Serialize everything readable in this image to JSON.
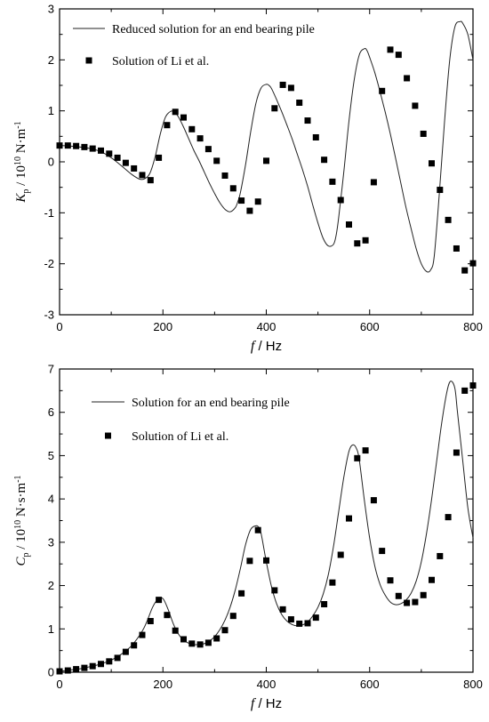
{
  "chart_data": [
    {
      "type": "line",
      "xlabel": {
        "var": "f",
        "rest": " / Hz"
      },
      "ylabel": {
        "sym": "K",
        "sub": "p",
        "mid": " / 10",
        "sup": "10",
        "unit": " N·m",
        "unitsup": "-1"
      },
      "xlim": [
        0,
        800
      ],
      "ylim": [
        -3,
        3
      ],
      "xticks": [
        "0",
        "200",
        "400",
        "600",
        "800"
      ],
      "yticks": [
        "-3",
        "-2",
        "-1",
        "0",
        "1",
        "2",
        "3"
      ],
      "legend_position": "top-left",
      "series": [
        {
          "name": "Reduced solution for an end bearing pile",
          "style": "line",
          "x": [
            0,
            20,
            40,
            60,
            80,
            100,
            120,
            140,
            155,
            165,
            175,
            185,
            195,
            205,
            215,
            222,
            230,
            240,
            250,
            260,
            270,
            280,
            290,
            300,
            310,
            320,
            330,
            340,
            345,
            350,
            360,
            370,
            380,
            390,
            400,
            405,
            410,
            420,
            430,
            440,
            450,
            460,
            470,
            480,
            490,
            500,
            510,
            520,
            530,
            535,
            540,
            550,
            560,
            570,
            580,
            590,
            595,
            600,
            610,
            620,
            630,
            640,
            650,
            660,
            670,
            680,
            690,
            700,
            710,
            718,
            725,
            735,
            745,
            755,
            765,
            775,
            780,
            790,
            800
          ],
          "y": [
            0.32,
            0.31,
            0.29,
            0.26,
            0.2,
            0.08,
            -0.08,
            -0.25,
            -0.34,
            -0.33,
            -0.22,
            0.1,
            0.55,
            0.88,
            0.99,
            0.98,
            0.88,
            0.68,
            0.45,
            0.22,
            0.02,
            -0.2,
            -0.42,
            -0.62,
            -0.8,
            -0.93,
            -0.98,
            -0.9,
            -0.78,
            -0.6,
            -0.05,
            0.6,
            1.15,
            1.45,
            1.52,
            1.5,
            1.44,
            1.22,
            0.98,
            0.72,
            0.45,
            0.15,
            -0.15,
            -0.48,
            -0.85,
            -1.2,
            -1.5,
            -1.65,
            -1.62,
            -1.45,
            -1.1,
            -0.2,
            0.8,
            1.6,
            2.1,
            2.22,
            2.18,
            2.05,
            1.75,
            1.38,
            0.98,
            0.55,
            0.08,
            -0.4,
            -0.88,
            -1.3,
            -1.7,
            -2.0,
            -2.15,
            -2.12,
            -1.85,
            -0.6,
            0.8,
            2.0,
            2.65,
            2.75,
            2.72,
            2.5,
            2.0
          ]
        },
        {
          "name": "Solution of Li et al.",
          "style": "markers",
          "x": [
            0,
            16,
            32,
            48,
            64,
            80,
            96,
            112,
            128,
            144,
            160,
            176,
            192,
            208,
            224,
            240,
            256,
            272,
            288,
            304,
            320,
            336,
            352,
            368,
            384,
            400,
            416,
            432,
            448,
            464,
            480,
            496,
            512,
            528,
            544,
            560,
            576,
            592,
            608,
            624,
            640,
            656,
            672,
            688,
            704,
            720,
            736,
            752,
            768,
            784,
            800
          ],
          "y": [
            0.32,
            0.32,
            0.31,
            0.29,
            0.26,
            0.22,
            0.16,
            0.08,
            -0.02,
            -0.13,
            -0.26,
            -0.36,
            0.08,
            0.72,
            0.98,
            0.87,
            0.64,
            0.46,
            0.25,
            0.02,
            -0.27,
            -0.52,
            -0.76,
            -0.96,
            -0.78,
            0.02,
            1.05,
            1.51,
            1.45,
            1.16,
            0.81,
            0.48,
            0.04,
            -0.39,
            -0.75,
            -1.23,
            -1.6,
            -1.54,
            -0.4,
            1.39,
            2.2,
            2.1,
            1.64,
            1.1,
            0.55,
            -0.03,
            -0.55,
            -1.14,
            -1.7,
            -2.13,
            -1.99
          ]
        }
      ]
    },
    {
      "type": "line",
      "xlabel": {
        "var": "f",
        "rest": " / Hz"
      },
      "ylabel": {
        "sym": "C",
        "sub": "p",
        "mid": " / 10",
        "sup": "10",
        "unit": " N·s·m",
        "unitsup": "-1"
      },
      "xlim": [
        0,
        800
      ],
      "ylim": [
        0,
        7
      ],
      "xticks": [
        "0",
        "200",
        "400",
        "600",
        "800"
      ],
      "yticks": [
        "0",
        "1",
        "2",
        "3",
        "4",
        "5",
        "6",
        "7"
      ],
      "legend_position": "top-left",
      "series": [
        {
          "name": "Solution for an end bearing pile",
          "style": "line",
          "x": [
            0,
            20,
            40,
            60,
            80,
            100,
            120,
            140,
            160,
            170,
            180,
            190,
            200,
            210,
            220,
            230,
            240,
            250,
            260,
            270,
            280,
            290,
            300,
            310,
            320,
            330,
            340,
            350,
            360,
            370,
            380,
            385,
            390,
            400,
            410,
            420,
            430,
            440,
            450,
            460,
            470,
            480,
            490,
            500,
            510,
            520,
            530,
            540,
            550,
            560,
            568,
            575,
            580,
            590,
            600,
            610,
            620,
            630,
            640,
            650,
            660,
            670,
            680,
            690,
            700,
            710,
            720,
            730,
            740,
            750,
            757,
            765,
            770,
            780,
            790,
            800
          ],
          "y": [
            0.02,
            0.05,
            0.08,
            0.13,
            0.19,
            0.28,
            0.42,
            0.62,
            0.95,
            1.2,
            1.5,
            1.68,
            1.7,
            1.45,
            1.12,
            0.88,
            0.74,
            0.67,
            0.64,
            0.64,
            0.66,
            0.72,
            0.82,
            0.98,
            1.2,
            1.5,
            1.9,
            2.4,
            2.95,
            3.3,
            3.38,
            3.35,
            3.2,
            2.55,
            1.98,
            1.58,
            1.33,
            1.18,
            1.1,
            1.07,
            1.09,
            1.16,
            1.3,
            1.5,
            1.8,
            2.25,
            2.9,
            3.7,
            4.5,
            5.1,
            5.25,
            5.15,
            4.9,
            3.95,
            3.1,
            2.45,
            2.03,
            1.78,
            1.62,
            1.56,
            1.58,
            1.66,
            1.82,
            2.1,
            2.55,
            3.2,
            4.0,
            4.9,
            5.8,
            6.5,
            6.72,
            6.55,
            6.0,
            4.9,
            3.8,
            3.1
          ]
        },
        {
          "name": "Solution of Li et al.",
          "style": "markers",
          "x": [
            0,
            16,
            32,
            48,
            64,
            80,
            96,
            112,
            128,
            144,
            160,
            176,
            192,
            208,
            224,
            240,
            256,
            272,
            288,
            304,
            320,
            336,
            352,
            368,
            384,
            400,
            416,
            432,
            448,
            464,
            480,
            496,
            512,
            528,
            544,
            560,
            576,
            592,
            608,
            624,
            640,
            656,
            672,
            688,
            704,
            720,
            736,
            752,
            768,
            784,
            800
          ],
          "y": [
            0.02,
            0.04,
            0.07,
            0.1,
            0.14,
            0.19,
            0.25,
            0.33,
            0.47,
            0.62,
            0.86,
            1.18,
            1.67,
            1.32,
            0.96,
            0.76,
            0.66,
            0.64,
            0.68,
            0.78,
            0.97,
            1.3,
            1.82,
            2.57,
            3.28,
            2.58,
            1.89,
            1.45,
            1.22,
            1.12,
            1.13,
            1.26,
            1.57,
            2.07,
            2.71,
            3.55,
            4.94,
            5.12,
            3.97,
            2.8,
            2.12,
            1.76,
            1.6,
            1.62,
            1.78,
            2.13,
            2.68,
            3.58,
            5.07,
            6.5,
            6.62
          ]
        }
      ]
    }
  ]
}
